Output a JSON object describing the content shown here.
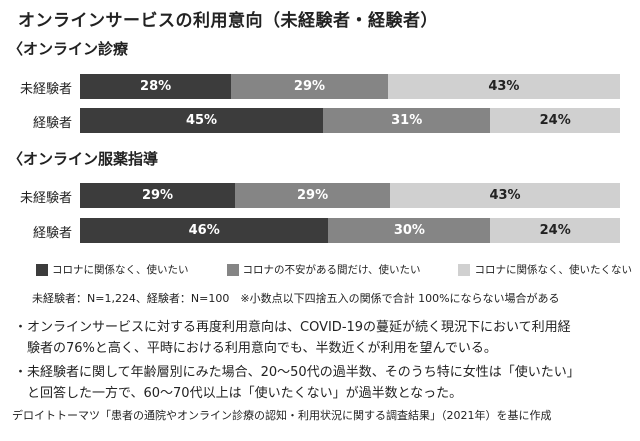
{
  "chart_data": {
    "type": "bar",
    "stacked": true,
    "orientation": "horizontal",
    "title": "オンラインサービスの利用意向（未経験者・経験者）",
    "colors": [
      "#3c3c3c",
      "#858585",
      "#d0d0d0"
    ],
    "legend": [
      "コロナに関係なく、使いたい",
      "コロナの不安がある間だけ、使いたい",
      "コロナに関係なく、使いたくない"
    ],
    "legend_position": "bottom",
    "panels": [
      {
        "title": "〈オンライン診療",
        "categories": [
          "未経験者",
          "経験者"
        ],
        "values": [
          [
            28,
            29,
            43
          ],
          [
            45,
            31,
            24
          ]
        ]
      },
      {
        "title": "〈オンライン服薬指導",
        "categories": [
          "未経験者",
          "経験者"
        ],
        "values": [
          [
            29,
            29,
            43
          ],
          [
            46,
            30,
            24
          ]
        ]
      }
    ],
    "note": "未経験者：N=1,224、経験者：N=100　※小数点以下四捨五入の関係で合計 100%にならない場合がある"
  },
  "bullets": [
    [
      "・オンラインサービスに対する再度利用意向は、COVID-19の蔓延が続く現況下において利用経",
      "　験者の76%と高く、平時における利用意向でも、半数近くが利用を望んでいる。"
    ],
    [
      "・未経験者に関して年齢層別にみた場合、20～50代の過半数、そのうち特に女性は「使いたい」",
      "　と回答した一方で、60～70代以上は「使いたくない」が過半数となった。"
    ]
  ],
  "source": "デロイトトーマツ「患者の通院やオンライン診療の認知・利用状況に関する調査結果」（2021年）を基に作成"
}
